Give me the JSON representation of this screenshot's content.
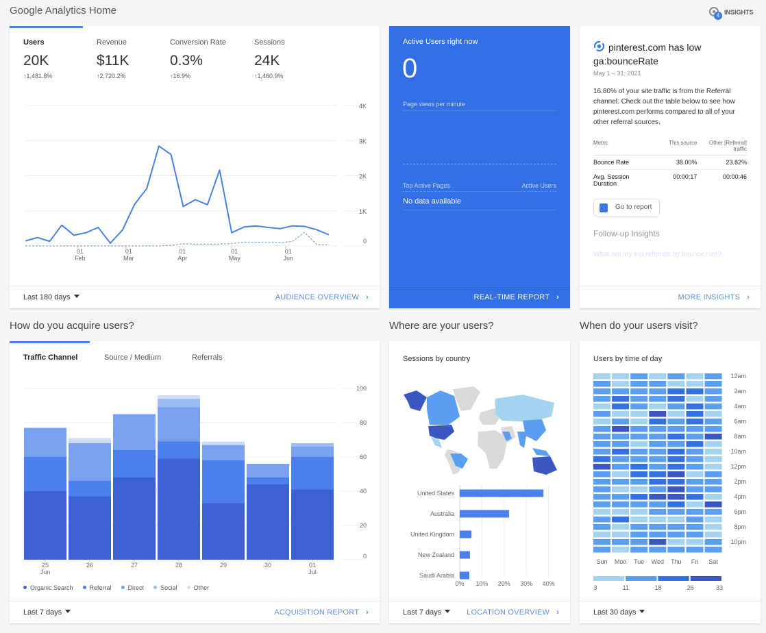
{
  "header": {
    "title": "Google Analytics Home",
    "insights_label": "INSIGHTS",
    "insights_badge": "4"
  },
  "overview": {
    "metrics": [
      {
        "label": "Users",
        "value": "20K",
        "change": "1,481.8%",
        "active": true
      },
      {
        "label": "Revenue",
        "value": "$11K",
        "change": "2,720.2%"
      },
      {
        "label": "Conversion Rate",
        "value": "0.3%",
        "change": "16.9%"
      },
      {
        "label": "Sessions",
        "value": "24K",
        "change": "1,460.9%"
      }
    ],
    "date_range": "Last 180 days",
    "link": "AUDIENCE OVERVIEW"
  },
  "realtime": {
    "title": "Active Users right now",
    "count": "0",
    "pageviews_label": "Page views per minute",
    "col_pages": "Top Active Pages",
    "col_users": "Active Users",
    "empty": "No data available",
    "link": "REAL-TIME REPORT"
  },
  "insight": {
    "title": "pinterest.com has low ga:bounceRate",
    "date": "May 1 – 31, 2021",
    "body": "16.80% of your site traffic is from the Referral channel. Check out the table below to see how pinterest.com performs compared to all of your other referral sources.",
    "table": {
      "headers": [
        "Metric",
        "This source",
        "Other [Referral] traffic"
      ],
      "rows": [
        [
          "Bounce Rate",
          "38.00%",
          "23.82%"
        ],
        [
          "Avg. Session Duration",
          "00:00:17",
          "00:00:46"
        ]
      ]
    },
    "button": "Go to report",
    "followup_title": "Follow-up Insights",
    "followup_link": "What are my top referrals by bounce rate?",
    "link": "MORE INSIGHTS"
  },
  "acquisition": {
    "section_title": "How do you acquire users?",
    "tabs": [
      "Traffic Channel",
      "Source / Medium",
      "Referrals"
    ],
    "date_range": "Last 7 days",
    "link": "ACQUISITION REPORT"
  },
  "location": {
    "section_title": "Where are your users?",
    "card_title": "Sessions by country",
    "date_range": "Last 7 days",
    "link": "LOCATION OVERVIEW"
  },
  "time": {
    "section_title": "When do your users visit?",
    "card_title": "Users by time of day",
    "date_range": "Last 30 days"
  },
  "colors": {
    "accent": "#4285f4",
    "realtime_bg": "#326fe4",
    "link": "#5c8fe6"
  },
  "chart_data": [
    {
      "type": "line",
      "x_start": "2021-01-02",
      "x_step_days": 7,
      "series": [
        {
          "values": [
            143,
            240,
            130,
            591,
            305,
            377,
            526,
            78,
            455,
            1188,
            1636,
            2844,
            2604,
            1123,
            1318,
            1175,
            2162,
            377,
            539,
            571,
            526,
            494,
            571,
            558,
            461,
            318
          ],
          "style": "solid",
          "color": "#4a7fe8"
        },
        {
          "values": [
            0,
            0,
            0,
            0,
            0,
            0,
            0,
            0,
            0,
            0,
            0,
            0,
            20,
            60,
            50,
            50,
            50,
            70,
            110,
            90,
            100,
            90,
            130,
            390,
            40,
            30
          ],
          "style": "dashed",
          "color": "#7aa3ee"
        }
      ],
      "x_ticks": [
        {
          "date": "2021-02-01",
          "label": [
            "01",
            "Feb"
          ]
        },
        {
          "date": "2021-03-01",
          "label": [
            "01",
            "Mar"
          ]
        },
        {
          "date": "2021-04-01",
          "label": [
            "01",
            "Apr"
          ]
        },
        {
          "date": "2021-05-01",
          "label": [
            "01",
            "May"
          ]
        },
        {
          "date": "2021-06-01",
          "label": [
            "01",
            "Jun"
          ]
        }
      ],
      "y_ticks": [
        {
          "v": 0,
          "label": "0"
        },
        {
          "v": 1000,
          "label": "1K"
        },
        {
          "v": 2000,
          "label": "2K"
        },
        {
          "v": 3000,
          "label": "3K"
        },
        {
          "v": 4000,
          "label": "4K"
        }
      ],
      "ylim": [
        0,
        4000
      ],
      "grid": true
    },
    {
      "type": "bar",
      "stacked": true,
      "categories": [
        [
          "25",
          "Jun"
        ],
        [
          "26"
        ],
        [
          "27"
        ],
        [
          "28"
        ],
        [
          "29"
        ],
        [
          "30"
        ],
        [
          "01",
          "Jul"
        ]
      ],
      "series": [
        {
          "name": "Organic Search",
          "color": "#3c61d1",
          "values": [
            40,
            37,
            48,
            59,
            33,
            44,
            41
          ]
        },
        {
          "name": "Referral",
          "color": "#4a7fec",
          "values": [
            20,
            9,
            16,
            10,
            25,
            4,
            19
          ]
        },
        {
          "name": "Direct",
          "color": "#7aa0f0",
          "values": [
            17,
            22,
            21,
            20,
            9,
            8,
            6
          ]
        },
        {
          "name": "Social",
          "color": "#9dbaf3",
          "values": [
            0,
            0,
            0,
            5,
            0,
            0,
            2
          ]
        },
        {
          "name": "Other",
          "color": "#cfdcf8",
          "values": [
            0,
            3,
            0,
            2,
            2,
            0,
            0
          ]
        }
      ],
      "y_ticks": [
        0,
        20,
        40,
        60,
        80,
        100
      ],
      "ylim": [
        0,
        100
      ],
      "grid": true,
      "legend": "bottom"
    },
    {
      "type": "bar",
      "orientation": "horizontal",
      "categories": [
        "United States",
        "Australia",
        "United Kingdom",
        "New Zealand",
        "Saudi Arabia"
      ],
      "values": [
        37.7,
        22.2,
        5.3,
        4.6,
        4.3
      ],
      "x_ticks": [
        "0%",
        "10%",
        "20%",
        "30%",
        "40%"
      ],
      "xlim": [
        0,
        40
      ],
      "color": "#4a7fec",
      "grid": true
    },
    {
      "type": "heatmap",
      "columns": [
        "Sun",
        "Mon",
        "Tue",
        "Wed",
        "Thu",
        "Fri",
        "Sat"
      ],
      "row_labels": [
        "12am",
        "",
        "2am",
        "",
        "4am",
        "",
        "6am",
        "",
        "8am",
        "",
        "10am",
        "",
        "12pm",
        "",
        "2pm",
        "",
        "4pm",
        "",
        "6pm",
        "",
        "8pm",
        "",
        "10pm",
        ""
      ],
      "bin_colors": [
        "#a3d3ef",
        "#5a9ef0",
        "#3570e0",
        "#3a56c0"
      ],
      "bin_edges": [
        "3",
        "11",
        "18",
        "26",
        "33"
      ],
      "bins": [
        [
          0,
          0,
          1,
          0,
          1,
          0,
          1
        ],
        [
          1,
          0,
          1,
          1,
          0,
          0,
          1
        ],
        [
          1,
          1,
          1,
          1,
          2,
          2,
          1
        ],
        [
          1,
          2,
          1,
          1,
          2,
          0,
          1
        ],
        [
          0,
          2,
          1,
          0,
          1,
          2,
          1
        ],
        [
          1,
          0,
          0,
          3,
          0,
          2,
          0
        ],
        [
          0,
          1,
          0,
          2,
          1,
          2,
          1
        ],
        [
          1,
          3,
          1,
          1,
          1,
          1,
          1
        ],
        [
          1,
          1,
          1,
          1,
          2,
          1,
          3
        ],
        [
          1,
          1,
          0,
          1,
          1,
          2,
          0
        ],
        [
          1,
          2,
          1,
          1,
          2,
          1,
          0
        ],
        [
          2,
          1,
          1,
          1,
          2,
          1,
          0
        ],
        [
          3,
          1,
          2,
          1,
          2,
          1,
          0
        ],
        [
          1,
          0,
          2,
          2,
          3,
          0,
          1
        ],
        [
          1,
          1,
          1,
          2,
          2,
          1,
          1
        ],
        [
          1,
          0,
          0,
          1,
          3,
          1,
          1
        ],
        [
          1,
          1,
          2,
          3,
          3,
          2,
          0
        ],
        [
          1,
          1,
          1,
          1,
          2,
          0,
          3
        ],
        [
          0,
          0,
          0,
          1,
          1,
          1,
          1
        ],
        [
          1,
          2,
          0,
          0,
          0,
          1,
          0
        ],
        [
          1,
          0,
          1,
          1,
          1,
          1,
          0
        ],
        [
          0,
          0,
          1,
          1,
          1,
          1,
          0
        ],
        [
          1,
          1,
          1,
          3,
          0,
          0,
          1
        ],
        [
          1,
          0,
          1,
          1,
          1,
          1,
          1
        ]
      ]
    }
  ]
}
